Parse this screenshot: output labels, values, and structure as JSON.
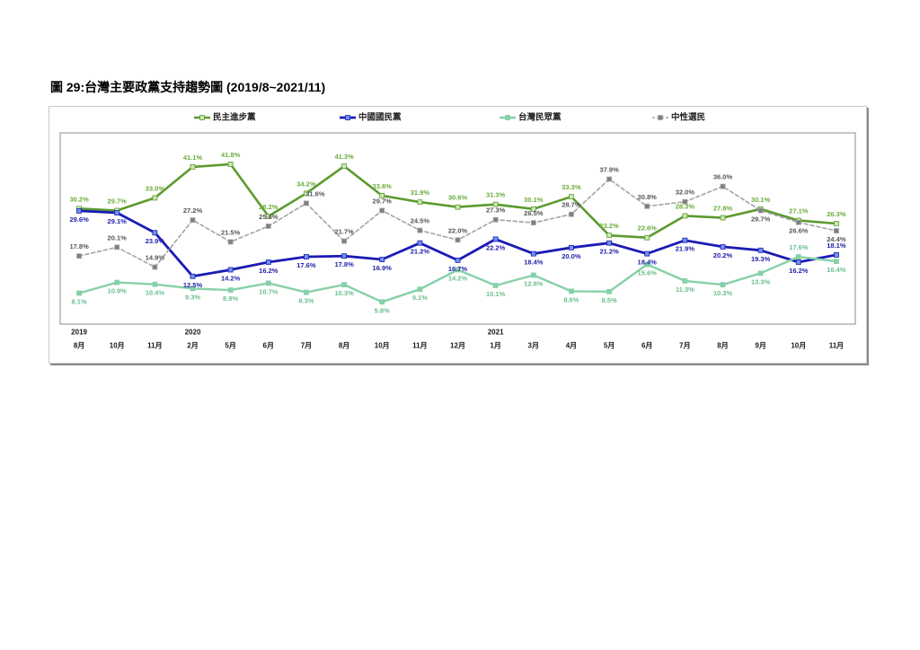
{
  "title": "圖 29:台灣主要政黨支持趨勢圖 (2019/8~2021/11)",
  "chart_data": {
    "type": "line",
    "unit": "%",
    "year_labels": [
      "2019",
      "",
      "",
      "2020",
      "",
      "",
      "",
      "",
      "",
      "",
      "",
      "2021",
      "",
      "",
      "",
      "",
      "",
      "",
      "",
      "",
      ""
    ],
    "categories": [
      "8月",
      "10月",
      "11月",
      "2月",
      "5月",
      "6月",
      "7月",
      "8月",
      "10月",
      "11月",
      "12月",
      "1月",
      "3月",
      "4月",
      "5月",
      "6月",
      "7月",
      "8月",
      "9月",
      "10月",
      "11月"
    ],
    "ylim": [
      0,
      50
    ],
    "grid": false,
    "legend": "top",
    "series": [
      {
        "name": "民主進步黨",
        "color": "#5b9b2e",
        "marker_color": "#cde8b5",
        "label_color": "#6cab3a",
        "values": [
          30.2,
          29.7,
          33.0,
          41.1,
          41.8,
          28.2,
          34.2,
          41.3,
          33.6,
          31.9,
          30.6,
          31.3,
          30.1,
          33.3,
          23.2,
          22.6,
          28.3,
          27.8,
          30.1,
          27.1,
          26.3
        ]
      },
      {
        "name": "中國國民黨",
        "color": "#1b1bb5",
        "marker_color": "#6f93f0",
        "label_color": "#2121aa",
        "values": [
          29.6,
          29.1,
          23.9,
          12.5,
          14.2,
          16.2,
          17.6,
          17.8,
          16.9,
          21.2,
          16.7,
          22.2,
          18.4,
          20.0,
          21.2,
          18.4,
          21.9,
          20.2,
          19.3,
          16.2,
          18.1
        ]
      },
      {
        "name": "台灣民眾黨",
        "color": "#86d1a8",
        "marker_color": "#86d1a8",
        "label_color": "#6bbf8d",
        "values": [
          8.1,
          10.9,
          10.4,
          9.3,
          8.9,
          10.7,
          8.3,
          10.3,
          5.8,
          9.1,
          14.2,
          10.1,
          12.8,
          8.6,
          8.5,
          15.6,
          11.3,
          10.3,
          13.3,
          17.6,
          16.4
        ]
      },
      {
        "name": "中性選民",
        "color": "#a3a3a3",
        "marker_color": "#7f7f7f",
        "label_color": "#555555",
        "values": [
          17.8,
          20.1,
          14.9,
          27.2,
          21.5,
          25.6,
          31.6,
          21.7,
          29.7,
          24.5,
          22.0,
          27.3,
          26.5,
          28.7,
          37.9,
          30.8,
          32.0,
          36.0,
          29.7,
          26.6,
          24.4
        ]
      }
    ]
  }
}
